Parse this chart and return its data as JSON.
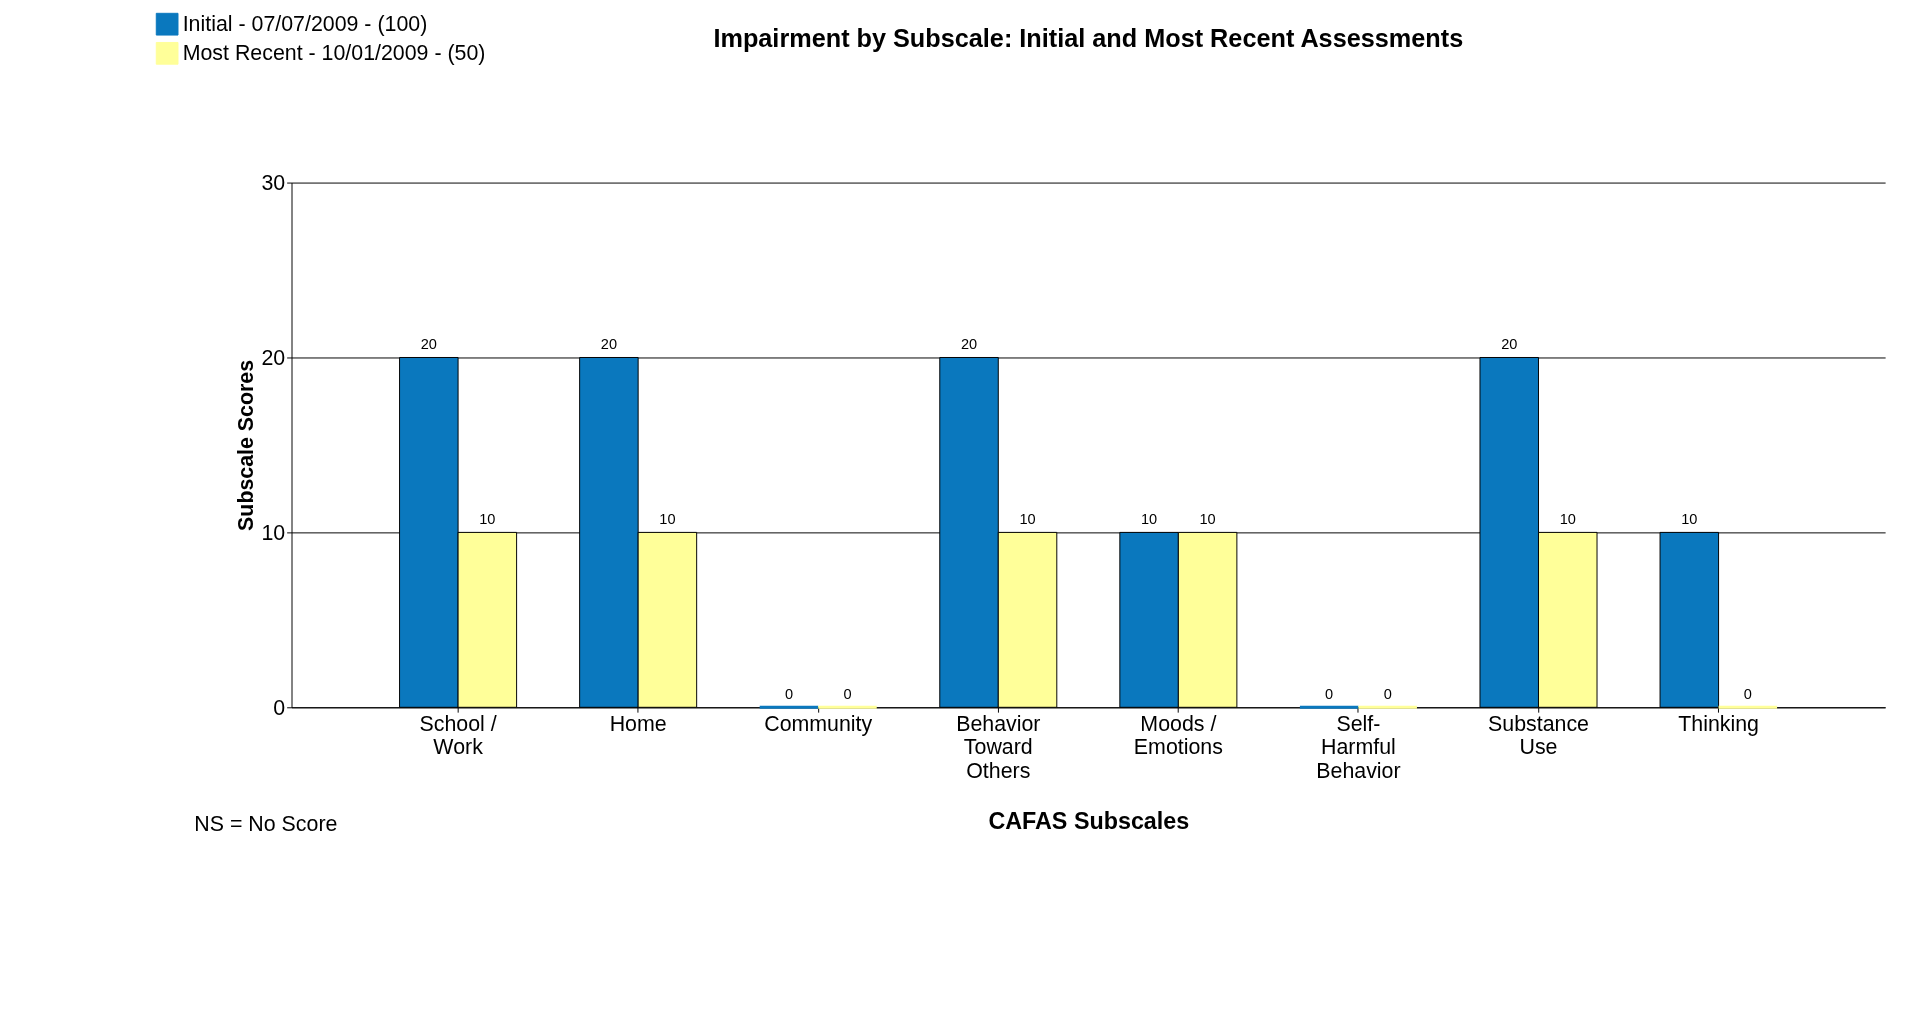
{
  "chart_data": {
    "type": "bar",
    "title": "Impairment by Subscale: Initial and Most Recent Assessments",
    "xlabel": "CAFAS Subscales",
    "ylabel": "Subscale Scores",
    "categories": [
      "School / Work",
      "Home",
      "Community",
      "Behavior Toward Others",
      "Moods / Emotions",
      "Self-Harmful Behavior",
      "Substance Use",
      "Thinking"
    ],
    "series": [
      {
        "name": "Initial - 07/07/2009 - (100)",
        "color": "#0a78be",
        "values": [
          20,
          20,
          0,
          20,
          10,
          0,
          20,
          10
        ]
      },
      {
        "name": "Most Recent - 10/01/2009 - (50)",
        "color": "#ffff99",
        "values": [
          10,
          10,
          0,
          10,
          10,
          0,
          10,
          0
        ]
      }
    ],
    "ylim": [
      0,
      30
    ],
    "yticks": [
      0,
      10,
      20,
      30
    ],
    "grid": "y",
    "legend": "top left",
    "data_labels": true,
    "annotations": [
      "NS = No Score"
    ]
  }
}
